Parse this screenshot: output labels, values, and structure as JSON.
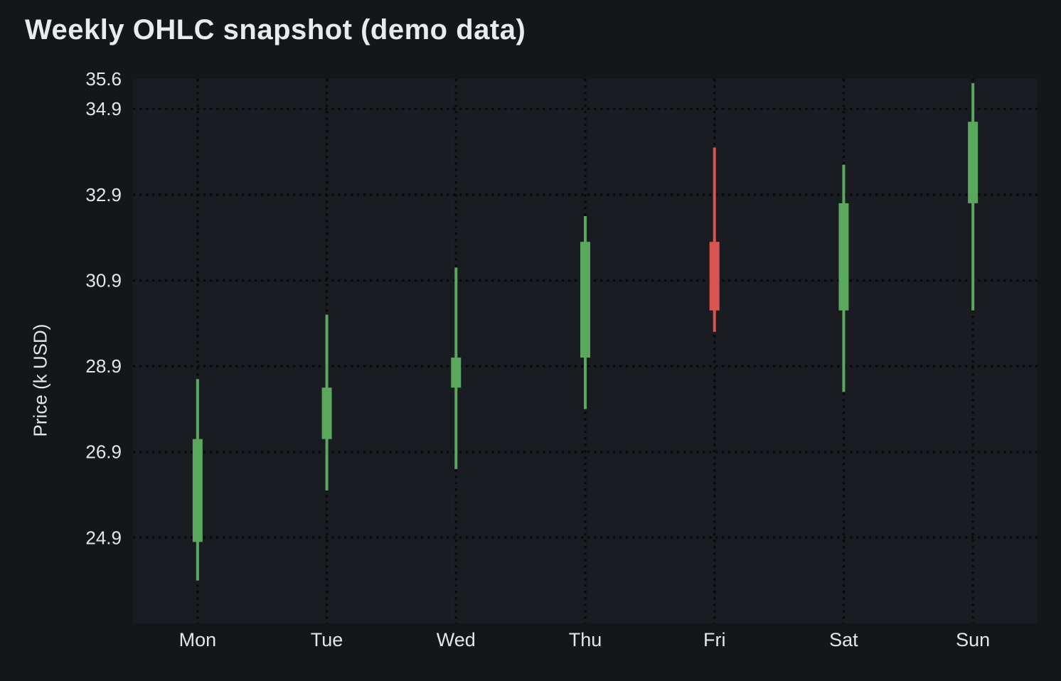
{
  "page": {
    "title": "Weekly OHLC snapshot (demo data)"
  },
  "chart_data": {
    "type": "candlestick",
    "title": "Weekly OHLC snapshot (demo data)",
    "xlabel": "",
    "ylabel": "Price (k USD)",
    "categories": [
      "Mon",
      "Tue",
      "Wed",
      "Thu",
      "Fri",
      "Sat",
      "Sun"
    ],
    "ohlc": [
      {
        "day": "Mon",
        "open": 24.8,
        "high": 28.6,
        "low": 23.9,
        "close": 27.2,
        "direction": "up"
      },
      {
        "day": "Tue",
        "open": 27.2,
        "high": 30.1,
        "low": 26.0,
        "close": 28.4,
        "direction": "up"
      },
      {
        "day": "Wed",
        "open": 28.4,
        "high": 31.2,
        "low": 26.5,
        "close": 29.1,
        "direction": "up"
      },
      {
        "day": "Thu",
        "open": 29.1,
        "high": 32.4,
        "low": 27.9,
        "close": 31.8,
        "direction": "up"
      },
      {
        "day": "Fri",
        "open": 31.8,
        "high": 34.0,
        "low": 29.7,
        "close": 30.2,
        "direction": "down"
      },
      {
        "day": "Sat",
        "open": 30.2,
        "high": 33.6,
        "low": 28.3,
        "close": 32.7,
        "direction": "up"
      },
      {
        "day": "Sun",
        "open": 32.7,
        "high": 35.5,
        "low": 30.2,
        "close": 34.6,
        "direction": "up"
      }
    ],
    "ylim": [
      22.9,
      35.6
    ],
    "yticks": [
      {
        "value": 35.6,
        "label": "35.6",
        "gridline": false
      },
      {
        "value": 34.9,
        "label": "34.9",
        "gridline": true
      },
      {
        "value": 32.9,
        "label": "32.9",
        "gridline": true
      },
      {
        "value": 30.9,
        "label": "30.9",
        "gridline": true
      },
      {
        "value": 28.9,
        "label": "28.9",
        "gridline": true
      },
      {
        "value": 26.9,
        "label": "26.9",
        "gridline": true
      },
      {
        "value": 24.9,
        "label": "24.9",
        "gridline": true
      }
    ],
    "grid": true,
    "legend": "none",
    "colors": {
      "up": "#5aa85c",
      "down": "#d9544f",
      "background": "#141619",
      "plot_background": "#191c21",
      "gridline": "#0a0b0d",
      "tick_text": "#e4e7ea",
      "title_text": "#e9ecef"
    }
  }
}
